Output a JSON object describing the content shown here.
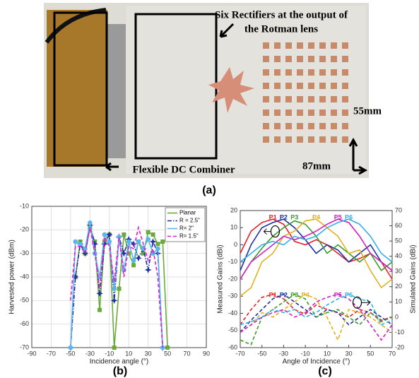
{
  "photo": {
    "caption": "(a)",
    "rectifier_label": [
      "Six Rectifiers at the output of",
      "the Rotman lens"
    ],
    "combiner_label": "Flexible DC Combiner",
    "height_label": "55mm",
    "width_label": "87mm"
  },
  "chart_data": [
    {
      "type": "line",
      "caption": "(b)",
      "xlabel": "Incidence angle (°)",
      "ylabel": "Harvested power (dBm)",
      "x": [
        -50,
        -45,
        -40,
        -35,
        -30,
        -25,
        -20,
        -15,
        -10,
        -5,
        0,
        5,
        10,
        15,
        20,
        25,
        30,
        35,
        40,
        45,
        50
      ],
      "series": [
        {
          "name": "Planar",
          "color": "#6aaa3a",
          "linestyle": "solid",
          "marker": "square",
          "values": [
            null,
            -40,
            -25,
            -30,
            -19,
            -25,
            -54,
            -25,
            -22,
            -70,
            -45,
            -22,
            -30,
            -35,
            -25,
            -30,
            -21,
            -22,
            -26,
            -25,
            -70
          ]
        },
        {
          "name": "R = 2.5\"",
          "color": "#1f2fa8",
          "linestyle": "dashdot",
          "marker": "star",
          "values": [
            -70,
            -40,
            -26,
            -30,
            -18,
            -26,
            -47,
            -26,
            -22,
            -50,
            -23,
            -30,
            -24,
            -26,
            -32,
            -28,
            -37,
            -25,
            -30,
            -70,
            null
          ]
        },
        {
          "name": "R= 2\"",
          "color": "#5ab4f0",
          "linestyle": "solid",
          "marker": "circle",
          "values": [
            -70,
            -25,
            -26,
            -28,
            -17,
            -30,
            -40,
            -22,
            -25,
            -45,
            -23,
            -37,
            -25,
            -33,
            -25,
            -28,
            -24,
            -30,
            -28,
            -70,
            null
          ]
        },
        {
          "name": "R= 1.5\"",
          "color": "#e020d0",
          "linestyle": "dashed",
          "marker": "none",
          "values": [
            -50,
            -27,
            -27,
            -30,
            -19,
            -30,
            -45,
            -23,
            -27,
            -42,
            -23,
            -40,
            -27,
            -28,
            -19,
            -26,
            -33,
            -28,
            -40,
            -70,
            null
          ]
        }
      ],
      "xlim": [
        -90,
        90
      ],
      "xticks": [
        -90,
        -70,
        -50,
        -30,
        -10,
        10,
        30,
        50,
        70,
        90
      ],
      "ylim": [
        -70,
        -10
      ],
      "yticks": [
        -70,
        -60,
        -50,
        -40,
        -30,
        -20,
        -10
      ],
      "grid": true,
      "legend": "upper right"
    },
    {
      "type": "line",
      "caption": "(c)",
      "xlabel": "Angle of Incidence (°)",
      "ylabel": "Measured Gains (dBi)",
      "y2label": "Simulated Gains (dBi)",
      "x": [
        -70,
        -60,
        -50,
        -40,
        -30,
        -20,
        -10,
        0,
        10,
        20,
        30,
        40,
        50,
        60,
        70
      ],
      "series": [
        {
          "name": "P1",
          "color": "#e8202a",
          "linestyle": "solid",
          "values": [
            -5,
            8,
            13,
            15,
            12,
            2,
            0,
            3,
            0,
            -5,
            -10,
            -8,
            -5,
            -10,
            -20
          ]
        },
        {
          "name": "P2",
          "color": "#1c2fa0",
          "linestyle": "solid",
          "values": [
            -15,
            0,
            10,
            13,
            15,
            10,
            3,
            -5,
            0,
            -3,
            -10,
            -5,
            0,
            -10,
            -15
          ]
        },
        {
          "name": "P3",
          "color": "#3a9a2a",
          "linestyle": "solid",
          "values": [
            -20,
            -10,
            -2,
            5,
            10,
            14,
            12,
            5,
            -5,
            0,
            -5,
            -10,
            -5,
            -15,
            -10
          ]
        },
        {
          "name": "P4",
          "color": "#e0b020",
          "linestyle": "solid",
          "values": [
            -30,
            -25,
            -10,
            -5,
            5,
            8,
            14,
            15,
            10,
            5,
            -5,
            -3,
            -15,
            -25,
            -20
          ]
        },
        {
          "name": "P5",
          "color": "#d020c0",
          "linestyle": "solid",
          "values": [
            -20,
            -10,
            -5,
            0,
            5,
            3,
            5,
            8,
            12,
            15,
            13,
            5,
            -5,
            -10,
            -15
          ]
        },
        {
          "name": "P6",
          "color": "#30b0e8",
          "linestyle": "solid",
          "values": [
            -10,
            -5,
            0,
            2,
            0,
            5,
            3,
            5,
            10,
            13,
            15,
            12,
            5,
            -5,
            -10
          ]
        },
        {
          "name": "P1",
          "color": "#e8202a",
          "linestyle": "dashed",
          "axis": "y2",
          "values": [
            -5,
            5,
            13,
            15,
            12,
            5,
            2,
            8,
            5,
            3,
            0,
            5,
            3,
            -2,
            0
          ]
        },
        {
          "name": "P2",
          "color": "#1c2fa0",
          "linestyle": "dashed",
          "axis": "y2",
          "values": [
            -10,
            -2,
            5,
            12,
            15,
            10,
            5,
            0,
            5,
            3,
            -5,
            0,
            5,
            0,
            -5
          ]
        },
        {
          "name": "P3",
          "color": "#3a9a2a",
          "linestyle": "dashed",
          "axis": "y2",
          "values": [
            -15,
            -18,
            0,
            5,
            10,
            15,
            12,
            0,
            3,
            5,
            0,
            -5,
            3,
            -3,
            0
          ]
        },
        {
          "name": "P4",
          "color": "#e0b020",
          "linestyle": "dashed",
          "axis": "y2",
          "values": [
            -10,
            -5,
            3,
            0,
            5,
            10,
            15,
            12,
            0,
            -15,
            5,
            3,
            0,
            -5,
            -10
          ]
        },
        {
          "name": "P5",
          "color": "#d020c0",
          "linestyle": "dashed",
          "axis": "y2",
          "values": [
            -10,
            -5,
            0,
            3,
            5,
            0,
            3,
            10,
            13,
            15,
            12,
            5,
            -5,
            -15,
            -5
          ]
        },
        {
          "name": "P6",
          "color": "#30b0e8",
          "linestyle": "dashed",
          "axis": "y2",
          "values": [
            -5,
            -3,
            0,
            5,
            3,
            5,
            0,
            3,
            8,
            12,
            15,
            12,
            10,
            -5,
            -2
          ]
        }
      ],
      "xlim": [
        -70,
        70
      ],
      "xticks": [
        -70,
        -50,
        -30,
        -10,
        10,
        30,
        50,
        70
      ],
      "ylim": [
        -60,
        20
      ],
      "yticks": [
        -60,
        -50,
        -40,
        -30,
        -20,
        -10,
        0,
        10,
        20
      ],
      "y2lim": [
        -20,
        70
      ],
      "y2ticks": [
        -20,
        -10,
        0,
        10,
        20,
        30,
        40,
        50,
        60,
        70
      ],
      "grid": false
    }
  ]
}
